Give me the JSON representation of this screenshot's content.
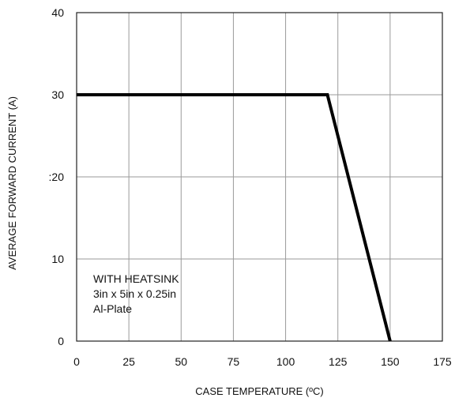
{
  "chart_data": {
    "type": "line",
    "title": "",
    "xlabel": "CASE TEMPERATURE (ºC)",
    "ylabel": "AVERAGE FORWARD CURRENT (A)",
    "xlim": [
      0,
      175
    ],
    "ylim": [
      0,
      40
    ],
    "x_ticks": [
      0,
      25,
      50,
      75,
      100,
      125,
      150,
      175
    ],
    "y_ticks": [
      0,
      10,
      20,
      30,
      40
    ],
    "y_tick_labels": [
      "0",
      "10",
      ":20",
      "30",
      "40"
    ],
    "grid": true,
    "series": [
      {
        "x": [
          0,
          120,
          150
        ],
        "y": [
          30,
          30,
          0
        ]
      }
    ],
    "annotation": {
      "lines": [
        "WITH HEATSINK",
        "3in x 5in x 0.25in",
        "Al-Plate"
      ]
    }
  }
}
